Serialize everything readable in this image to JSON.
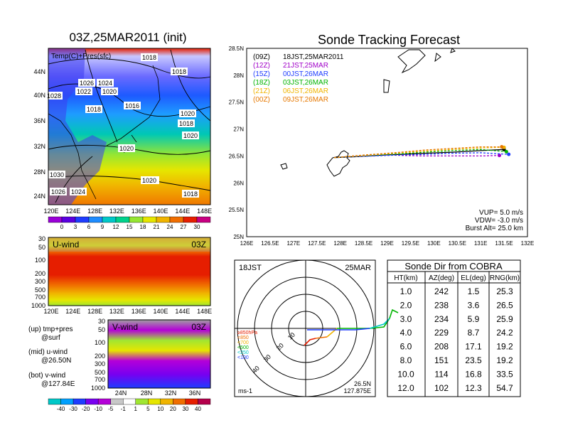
{
  "left_title": "03Z,25MAR2011 (init)",
  "map_panel": {
    "label": "Temp(C)+Pres(sfc)",
    "lat_ticks": [
      "44N",
      "40N",
      "36N",
      "32N",
      "28N",
      "24N"
    ],
    "lon_ticks": [
      "120E",
      "124E",
      "128E",
      "132E",
      "136E",
      "140E",
      "144E",
      "148E"
    ],
    "isobar_labels": [
      "1018",
      "1018",
      "1026",
      "1024",
      "1022",
      "1020",
      "1028",
      "1018",
      "1016",
      "1020",
      "1018",
      "1020",
      "1020",
      "1020",
      "1030",
      "1020",
      "1018",
      "1026",
      "1024"
    ],
    "colorbar_ticks": [
      "0",
      "3",
      "6",
      "9",
      "12",
      "15",
      "18",
      "21",
      "24",
      "27",
      "30"
    ],
    "colorbar_colors": [
      "#9a00d8",
      "#5a00e0",
      "#1e3cff",
      "#1e8cff",
      "#00c8c8",
      "#00d28c",
      "#96e632",
      "#e6e600",
      "#f0b400",
      "#f06e00",
      "#e61e00",
      "#c80082"
    ]
  },
  "uwind_panel": {
    "label": "U-wind",
    "time": "03Z",
    "p_ticks": [
      "30",
      "50",
      "100",
      "200",
      "300",
      "500",
      "700",
      "1000"
    ],
    "lon_ticks": [
      "120E",
      "124E",
      "128E",
      "132E",
      "136E",
      "140E",
      "144E",
      "148E"
    ]
  },
  "vwind_panel": {
    "label": "V-wind",
    "time": "03Z",
    "p_ticks": [
      "30",
      "50",
      "100",
      "200",
      "300",
      "500",
      "700",
      "1000"
    ],
    "lat_ticks": [
      "24N",
      "28N",
      "32N",
      "36N"
    ]
  },
  "legend_notes": [
    {
      "text": "(up) tmp+pres",
      "sub": "@surf"
    },
    {
      "text": "(mid) u-wind",
      "sub": "@26.50N"
    },
    {
      "text": "(bot) v-wind",
      "sub": "@127.84E"
    }
  ],
  "wind_colorbar": {
    "ticks": [
      "-40",
      "-30",
      "-20",
      "-10",
      "-5",
      "-1",
      "1",
      "5",
      "10",
      "20",
      "30",
      "40"
    ],
    "colors": [
      "#00c8c8",
      "#00a0ff",
      "#1e3cff",
      "#7800f0",
      "#b400d8",
      "#c8c8c8",
      "#ffffff",
      "#a0e632",
      "#e6e600",
      "#f0b400",
      "#f06e00",
      "#e61e00",
      "#b4004b"
    ]
  },
  "track_panel": {
    "title": "Sonde Tracking Forecast",
    "lat_ticks": [
      "28.5N",
      "28N",
      "27.5N",
      "27N",
      "26.5N",
      "26N",
      "25.5N",
      "25N"
    ],
    "lon_ticks": [
      "126E",
      "126.5E",
      "127E",
      "127.5E",
      "128E",
      "128.5E",
      "129E",
      "129.5E",
      "130E",
      "130.5E",
      "131E",
      "131.5E",
      "132E"
    ],
    "legend": [
      {
        "code": "(09Z)",
        "label": "18JST,25MAR2011",
        "color": "#000000"
      },
      {
        "code": "(12Z)",
        "label": "21JST,25MAR",
        "color": "#a000c8"
      },
      {
        "code": "(15Z)",
        "label": "00JST,26MAR",
        "color": "#1e3cff"
      },
      {
        "code": "(18Z)",
        "label": "03JST,26MAR",
        "color": "#00b400"
      },
      {
        "code": "(21Z)",
        "label": "06JST,26MAR",
        "color": "#f0b400"
      },
      {
        "code": "(00Z)",
        "label": "09JST,26MAR",
        "color": "#e67800"
      }
    ],
    "params": [
      "VUP= 5.0 m/s",
      "VDW= -3.0 m/s",
      "Burst Alt= 25.0 km"
    ]
  },
  "polar_panel": {
    "time_label": "18JST",
    "date_label": "25MAR",
    "ring_labels": [
      "10",
      "20",
      "30",
      "40"
    ],
    "bottom_left": "ms-1",
    "bottom_right_1": "26.5N",
    "bottom_right_2": "127.875E",
    "levels": [
      {
        "label": "≥850hPa",
        "color": "#e61e00"
      },
      {
        "label": "<850",
        "color": "#f06e00"
      },
      {
        "label": "<700",
        "color": "#f0b400"
      },
      {
        "label": "<500",
        "color": "#00b400"
      },
      {
        "label": "<250",
        "color": "#00c8c8"
      },
      {
        "label": "<100",
        "color": "#1e3cff"
      }
    ]
  },
  "cobra_table": {
    "title": "Sonde Dir from COBRA",
    "headers": [
      "HT(km)",
      "AZ(deg)",
      "EL(deg)",
      "RNG(km)"
    ],
    "rows": [
      [
        "1.0",
        "242",
        "1.5",
        "25.3"
      ],
      [
        "2.0",
        "238",
        "3.6",
        "26.5"
      ],
      [
        "3.0",
        "234",
        "5.9",
        "25.9"
      ],
      [
        "4.0",
        "229",
        "8.7",
        "24.2"
      ],
      [
        "6.0",
        "208",
        "17.1",
        "19.2"
      ],
      [
        "8.0",
        "151",
        "23.5",
        "19.2"
      ],
      [
        "10.0",
        "114",
        "16.8",
        "33.5"
      ],
      [
        "12.0",
        "102",
        "12.3",
        "54.7"
      ]
    ]
  },
  "chart_data": [
    {
      "type": "line",
      "title": "Sonde Tracking Forecast",
      "xlabel": "",
      "ylabel": "",
      "xlim": [
        126,
        132
      ],
      "ylim": [
        25,
        28.5
      ],
      "series": [
        {
          "name": "(09Z) 18JST,25MAR2011",
          "points": [
            [
              127.87,
              26.47
            ],
            [
              128.4,
              26.49
            ],
            [
              129.0,
              26.52
            ],
            [
              129.3,
              26.53
            ],
            [
              129.8,
              26.55
            ],
            [
              130.4,
              26.57
            ],
            [
              131.0,
              26.6
            ],
            [
              131.5,
              26.62
            ]
          ]
        },
        {
          "name": "(12Z) 21JST,25MAR",
          "points": [
            [
              127.87,
              26.47
            ],
            [
              128.4,
              26.5
            ],
            [
              129.0,
              26.52
            ],
            [
              129.3,
              26.51
            ],
            [
              129.8,
              26.5
            ],
            [
              130.4,
              26.5
            ],
            [
              131.0,
              26.5
            ],
            [
              131.4,
              26.51
            ]
          ]
        },
        {
          "name": "(15Z) 00JST,26MAR",
          "points": [
            [
              127.87,
              26.47
            ],
            [
              128.4,
              26.49
            ],
            [
              129.0,
              26.51
            ],
            [
              129.3,
              26.52
            ],
            [
              129.8,
              26.53
            ],
            [
              130.4,
              26.55
            ],
            [
              131.0,
              26.56
            ],
            [
              131.6,
              26.53
            ]
          ]
        },
        {
          "name": "(18Z) 03JST,26MAR",
          "points": [
            [
              127.87,
              26.47
            ],
            [
              128.4,
              26.5
            ],
            [
              129.0,
              26.53
            ],
            [
              129.3,
              26.54
            ],
            [
              129.8,
              26.57
            ],
            [
              130.4,
              26.6
            ],
            [
              131.0,
              26.62
            ],
            [
              131.55,
              26.58
            ]
          ]
        },
        {
          "name": "(21Z) 06JST,26MAR",
          "points": [
            [
              127.87,
              26.47
            ],
            [
              128.4,
              26.5
            ],
            [
              129.0,
              26.54
            ],
            [
              129.3,
              26.56
            ],
            [
              129.8,
              26.59
            ],
            [
              130.4,
              26.62
            ],
            [
              131.0,
              26.65
            ],
            [
              131.5,
              26.66
            ]
          ]
        },
        {
          "name": "(00Z) 09JST,26MAR",
          "points": [
            [
              127.87,
              26.47
            ],
            [
              128.4,
              26.51
            ],
            [
              129.0,
              26.55
            ],
            [
              129.3,
              26.57
            ],
            [
              129.8,
              26.61
            ],
            [
              130.4,
              26.64
            ],
            [
              131.0,
              26.67
            ],
            [
              131.45,
              26.67
            ]
          ]
        }
      ]
    },
    {
      "type": "table",
      "title": "Sonde Dir from COBRA",
      "columns": [
        "HT(km)",
        "AZ(deg)",
        "EL(deg)",
        "RNG(km)"
      ],
      "rows": [
        [
          1.0,
          242,
          1.5,
          25.3
        ],
        [
          2.0,
          238,
          3.6,
          26.5
        ],
        [
          3.0,
          234,
          5.9,
          25.9
        ],
        [
          4.0,
          229,
          8.7,
          24.2
        ],
        [
          6.0,
          208,
          17.1,
          19.2
        ],
        [
          8.0,
          151,
          23.5,
          19.2
        ],
        [
          10.0,
          114,
          16.8,
          33.5
        ],
        [
          12.0,
          102,
          12.3,
          54.7
        ]
      ]
    },
    {
      "type": "heatmap",
      "title": "Temp(C)+Pres(sfc)",
      "xlim": [
        120,
        150
      ],
      "ylim": [
        22,
        48
      ],
      "colorbar": [
        0,
        3,
        6,
        9,
        12,
        15,
        18,
        21,
        24,
        27,
        30
      ]
    },
    {
      "type": "heatmap",
      "title": "U-wind",
      "xlim": [
        120,
        150
      ],
      "ylim": [
        1000,
        30
      ],
      "colorbar": [
        -40,
        -30,
        -20,
        -10,
        -5,
        -1,
        1,
        5,
        10,
        20,
        30,
        40
      ]
    },
    {
      "type": "heatmap",
      "title": "V-wind",
      "xlim": [
        22,
        38
      ],
      "ylim": [
        1000,
        30
      ],
      "colorbar": [
        -40,
        -30,
        -20,
        -10,
        -5,
        -1,
        1,
        5,
        10,
        20,
        30,
        40
      ]
    }
  ]
}
